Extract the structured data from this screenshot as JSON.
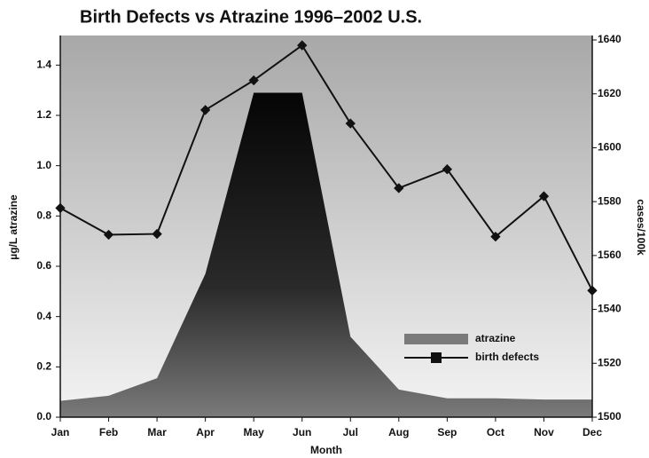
{
  "chart_data": {
    "type": "area-line",
    "title": "Birth Defects vs Atrazine 1996–2002 U.S.",
    "x_label": "Month",
    "y_label": "µg/L atrazine",
    "y2_label": "cases/100k",
    "categories": [
      "Jan",
      "Feb",
      "Mar",
      "Apr",
      "May",
      "Jun",
      "Jul",
      "Aug",
      "Sep",
      "Oct",
      "Nov",
      "Dec"
    ],
    "series": [
      {
        "name": "atrazine",
        "color": "#7a7a7a",
        "values": [
          0.065,
          0.085,
          0.155,
          0.57,
          1.29,
          1.29,
          0.32,
          0.11,
          0.075,
          0.075,
          0.07,
          0.07
        ]
      },
      {
        "name": "birth defects",
        "color": "#111111",
        "axis": "y2",
        "values": [
          1577.6,
          1567.7,
          1568,
          1614,
          1625,
          1638,
          1609,
          1585,
          1592,
          1567,
          1582,
          1547
        ]
      }
    ],
    "ylim": [
      0,
      1.5
    ],
    "yticks": [
      {
        "value": 0,
        "label": "0.0"
      },
      0.2,
      0.4,
      0.6,
      0.8,
      {
        "value": 1,
        "label": "1.0"
      },
      1.2,
      1.4
    ],
    "y2lim": [
      1500,
      1640
    ],
    "y2ticks": [
      1500,
      1520,
      1540,
      1560,
      1580,
      1600,
      1620,
      1640
    ],
    "legend": "lower-right"
  }
}
